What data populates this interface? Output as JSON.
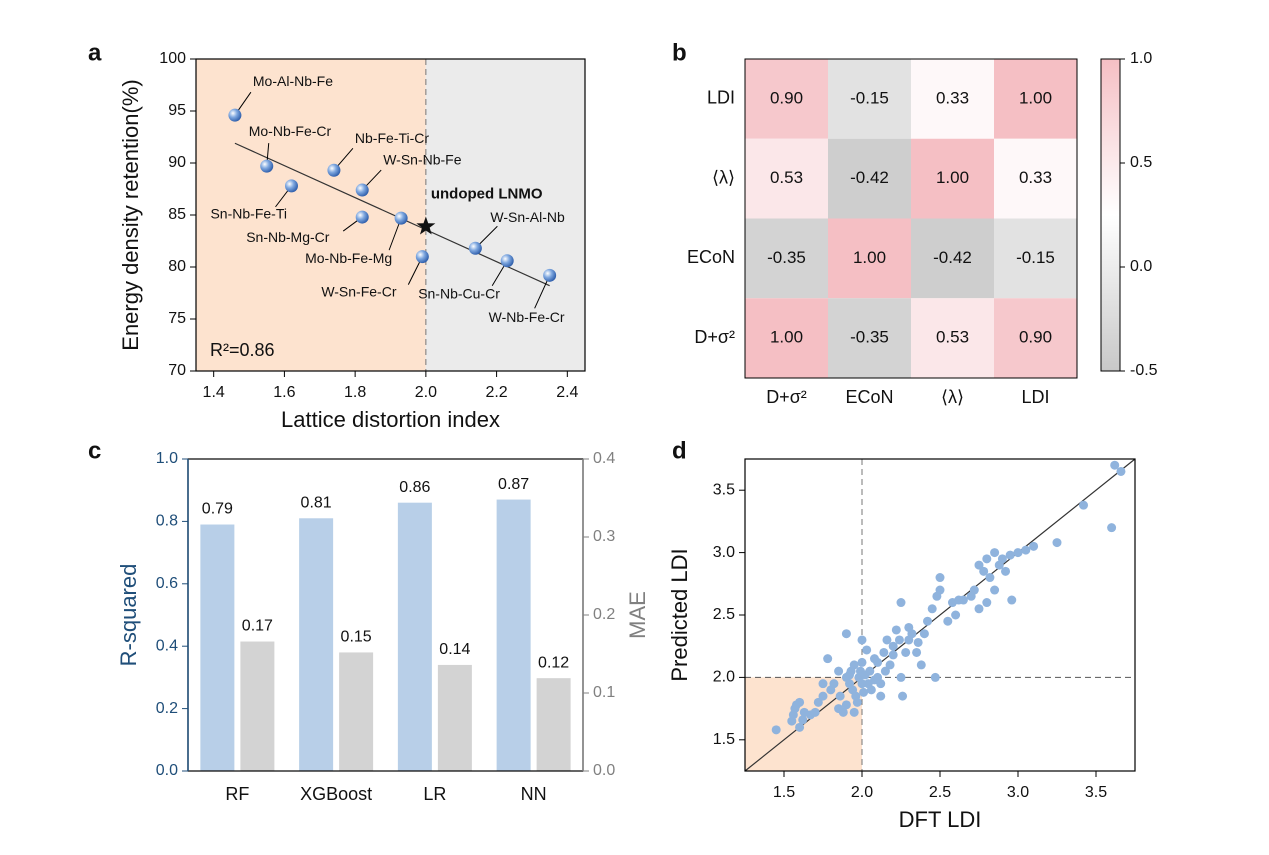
{
  "chart_data": [
    {
      "type": "scatter",
      "panel": "a",
      "x_label": "Lattice distortion index",
      "y_label": "Energy density retention(%)",
      "xlim": [
        1.35,
        2.45
      ],
      "ylim": [
        70,
        100
      ],
      "xticks": [
        1.4,
        1.6,
        1.8,
        {
          "value": 2,
          "label": "2.0"
        },
        2.2,
        2.4
      ],
      "yticks": [
        70,
        75,
        80,
        85,
        90,
        95,
        100
      ],
      "region_colors": [
        "#fde3cf",
        "#ebebeb"
      ],
      "threshold_x": 2,
      "series": [
        {
          "color": "#5b8fd6",
          "labels": [
            "Mo-Al-Nb-Fe",
            "Mo-Nb-Fe-Cr",
            "Sn-Nb-Fe-Ti",
            "Nb-Fe-Ti-Cr",
            "W-Sn-Nb-Fe",
            "Sn-Nb-Mg-Cr",
            "Mo-Nb-Fe-Mg",
            "W-Sn-Fe-Cr",
            "W-Sn-Al-Nb",
            "Sn-Nb-Cu-Cr",
            "W-Nb-Fe-Cr"
          ],
          "x": [
            1.46,
            1.55,
            1.62,
            1.74,
            1.82,
            1.82,
            1.93,
            1.99,
            2.14,
            2.23,
            2.35
          ],
          "y": [
            94.6,
            89.7,
            87.8,
            89.3,
            87.4,
            84.8,
            84.7,
            81.0,
            81.8,
            80.6,
            79.2
          ]
        }
      ],
      "reference": {
        "label": "undoped LNMO",
        "x": 2.0,
        "y": 83.9
      },
      "fit": {
        "x": [
          1.46,
          2.35
        ],
        "y": [
          91.9,
          78.2
        ]
      },
      "annotation": "R²=0.86"
    },
    {
      "type": "heatmap",
      "panel": "b",
      "rows": [
        "LDI",
        "⟨λ⟩",
        "ECoN",
        "D+σ²"
      ],
      "columns": [
        "D+σ²",
        "ECoN",
        "⟨λ⟩",
        "LDI"
      ],
      "values": [
        [
          0.9,
          -0.15,
          0.33,
          1.0
        ],
        [
          0.53,
          -0.42,
          1.0,
          0.33
        ],
        [
          -0.35,
          1.0,
          -0.42,
          -0.15
        ],
        [
          1.0,
          -0.35,
          0.53,
          0.9
        ]
      ],
      "value_labels": [
        [
          "0.90",
          "-0.15",
          "0.33",
          "1.00"
        ],
        [
          "0.53",
          "-0.42",
          "1.00",
          "0.33"
        ],
        [
          "-0.35",
          "1.00",
          "-0.42",
          "-0.15"
        ],
        [
          "1.00",
          "-0.35",
          "0.53",
          "0.90"
        ]
      ],
      "clim": [
        -0.5,
        1
      ],
      "colorbar_ticks": [
        -0.5,
        {
          "value": 0,
          "label": "0.0"
        },
        0.5,
        {
          "value": 1,
          "label": "1.0"
        }
      ],
      "colorscale": [
        "#c8c8c8",
        "#ffffff",
        "#f5bfc4"
      ]
    },
    {
      "type": "bar",
      "panel": "c",
      "categories": [
        "RF",
        "XGBoost",
        "LR",
        "NN"
      ],
      "y_label": "R-squared",
      "y2_label": "MAE",
      "ylim": [
        0,
        1
      ],
      "yticks": [
        {
          "value": 0,
          "label": "0.0"
        },
        0.2,
        0.4,
        0.6,
        0.8,
        {
          "value": 1,
          "label": "1.0"
        }
      ],
      "y2lim": [
        0,
        0.4
      ],
      "y2ticks": [
        {
          "value": 0,
          "label": "0.0"
        },
        0.1,
        0.2,
        0.3,
        0.4
      ],
      "y_color": "#1f4e79",
      "y2_color": "#808080",
      "series": [
        {
          "color": "#b8cfe8",
          "values": [
            0.79,
            0.81,
            0.86,
            0.87
          ]
        },
        {
          "axis": "y2",
          "color": "#d3d3d3",
          "values": [
            0.166,
            0.152,
            0.136,
            0.119
          ],
          "value_labels": [
            "0.17",
            "0.15",
            "0.14",
            "0.12"
          ]
        }
      ]
    },
    {
      "type": "scatter",
      "panel": "d",
      "x_label": "DFT LDI",
      "y_label": "Predicted LDI",
      "xlim": [
        1.25,
        3.75
      ],
      "ylim": [
        1.25,
        3.75
      ],
      "xticks": [
        1.5,
        {
          "value": 2,
          "label": "2.0"
        },
        2.5,
        {
          "value": 3,
          "label": "3.0"
        },
        3.5
      ],
      "yticks": [
        1.5,
        {
          "value": 2,
          "label": "2.0"
        },
        2.5,
        {
          "value": 3,
          "label": "3.0"
        },
        3.5
      ],
      "identity_line": true,
      "threshold_x": 2,
      "threshold_y": 2,
      "region_colors": [
        "#fde3cf"
      ],
      "series": [
        {
          "color": "#8fb3dd",
          "x": [
            1.45,
            1.55,
            1.56,
            1.57,
            1.58,
            1.6,
            1.62,
            1.67,
            1.7,
            1.72,
            1.75,
            1.75,
            1.78,
            1.8,
            1.82,
            1.85,
            1.86,
            1.88,
            1.9,
            1.9,
            1.92,
            1.93,
            1.94,
            1.95,
            1.96,
            1.97,
            1.98,
            1.99,
            2.0,
            2.0,
            2.01,
            2.02,
            2.03,
            2.04,
            2.05,
            2.06,
            2.08,
            2.1,
            2.1,
            2.12,
            2.14,
            2.15,
            2.16,
            2.18,
            2.2,
            2.2,
            2.22,
            2.24,
            2.25,
            2.25,
            2.26,
            2.28,
            2.3,
            2.3,
            2.32,
            2.35,
            2.36,
            2.38,
            2.4,
            2.42,
            2.45,
            2.47,
            2.48,
            2.5,
            2.5,
            2.55,
            2.58,
            2.6,
            2.62,
            2.65,
            2.7,
            2.72,
            2.75,
            2.75,
            2.78,
            2.8,
            2.8,
            2.82,
            2.85,
            2.85,
            2.88,
            2.9,
            2.92,
            2.95,
            2.96,
            3.0,
            3.05,
            3.1,
            3.25,
            3.42,
            3.6,
            3.62,
            3.66,
            1.6,
            1.63,
            1.9,
            1.95,
            1.92,
            2.0,
            1.85,
            2.08,
            2.12
          ],
          "y": [
            1.58,
            1.65,
            1.7,
            1.75,
            1.78,
            1.8,
            1.66,
            1.7,
            1.72,
            1.8,
            1.85,
            1.95,
            2.15,
            1.9,
            1.95,
            1.75,
            1.85,
            1.72,
            2.35,
            2.0,
            1.95,
            2.05,
            1.9,
            2.1,
            1.85,
            1.8,
            2.0,
            2.05,
            1.95,
            2.12,
            1.88,
            2.02,
            2.22,
            1.95,
            2.05,
            1.9,
            1.98,
            2.12,
            2.0,
            1.85,
            2.2,
            2.05,
            2.3,
            2.1,
            2.25,
            2.18,
            2.38,
            2.3,
            2.6,
            2.0,
            1.85,
            2.2,
            2.4,
            2.3,
            2.35,
            2.2,
            2.28,
            2.1,
            2.35,
            2.45,
            2.55,
            2.0,
            2.65,
            2.8,
            2.7,
            2.45,
            2.6,
            2.5,
            2.62,
            2.62,
            2.65,
            2.7,
            2.55,
            2.9,
            2.85,
            2.6,
            2.95,
            2.8,
            2.7,
            3.0,
            2.9,
            2.95,
            2.85,
            2.98,
            2.62,
            3.0,
            3.02,
            3.05,
            3.08,
            3.38,
            3.2,
            3.7,
            3.65,
            1.6,
            1.72,
            1.78,
            1.72,
            2.02,
            2.3,
            2.05,
            2.15,
            1.95
          ]
        }
      ]
    }
  ]
}
